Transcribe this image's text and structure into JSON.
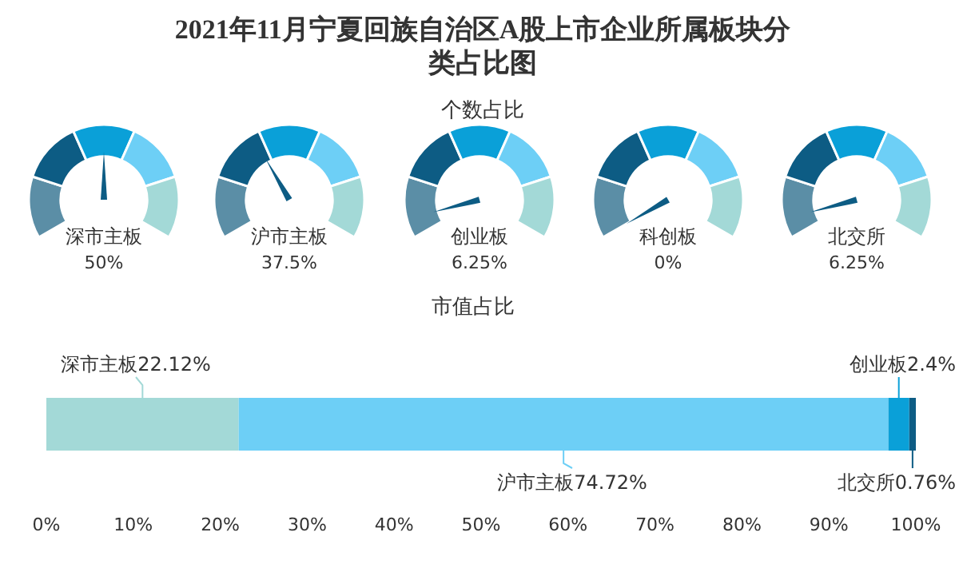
{
  "chart_data": [
    {
      "type": "other",
      "title": "2021年11月宁夏回族自治区A股上市企业所属板块分类占比图",
      "subtitle": "个数占比",
      "categories": [
        "深市主板"
      ],
      "values": [
        50
      ],
      "value_labels": [
        "50%"
      ]
    },
    {
      "type": "other",
      "categories": [
        "沪市主板"
      ],
      "values": [
        37.5
      ],
      "value_labels": [
        "37.5%"
      ]
    },
    {
      "type": "other",
      "categories": [
        "创业板"
      ],
      "values": [
        6.25
      ],
      "value_labels": [
        "6.25%"
      ]
    },
    {
      "type": "other",
      "categories": [
        "科创板"
      ],
      "values": [
        0
      ],
      "value_labels": [
        "0%"
      ]
    },
    {
      "type": "other",
      "categories": [
        "北交所"
      ],
      "values": [
        6.25
      ],
      "value_labels": [
        "6.25%"
      ]
    },
    {
      "type": "bar",
      "title": "市值占比",
      "orientation": "horizontal",
      "stacked": true,
      "categories": [
        null
      ],
      "xlim": [
        0,
        100
      ],
      "xticks": [
        {
          "value": 0,
          "label": "0%"
        },
        {
          "value": 10,
          "label": "10%"
        },
        {
          "value": 20,
          "label": "20%"
        },
        {
          "value": 30,
          "label": "30%"
        },
        {
          "value": 40,
          "label": "40%"
        },
        {
          "value": 50,
          "label": "50%"
        },
        {
          "value": 60,
          "label": "60%"
        },
        {
          "value": 70,
          "label": "70%"
        },
        {
          "value": 80,
          "label": "80%"
        },
        {
          "value": 90,
          "label": "90%"
        },
        {
          "value": 100,
          "label": "100%"
        }
      ],
      "series": [
        {
          "name": "深市主板",
          "color": "#a3d9d7",
          "values": [
            22.12
          ],
          "value_labels": [
            "22.12%"
          ]
        },
        {
          "name": "沪市主板",
          "color": "#6dcff6",
          "values": [
            74.72
          ],
          "value_labels": [
            "74.72%"
          ]
        },
        {
          "name": "创业板",
          "color": "#0aa0d8",
          "values": [
            2.4
          ],
          "value_labels": [
            "2.4%"
          ]
        },
        {
          "name": "北交所",
          "color": "#0d5c84",
          "values": [
            0.76
          ],
          "value_labels": [
            "0.76%"
          ]
        }
      ]
    }
  ]
}
